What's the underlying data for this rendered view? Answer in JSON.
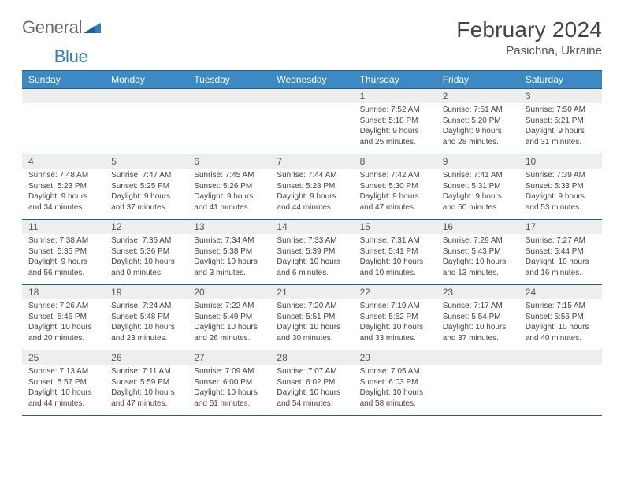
{
  "logo": {
    "word1": "General",
    "word2": "Blue"
  },
  "colors": {
    "headerBar": "#3d89c3",
    "rule": "#1f5f95",
    "daynumBg": "#eeeeee",
    "logoBlue": "#2f7fc2",
    "logoGray": "#6a6a6a",
    "text": "#444444"
  },
  "title": "February 2024",
  "location": "Pasichna, Ukraine",
  "dayNames": [
    "Sunday",
    "Monday",
    "Tuesday",
    "Wednesday",
    "Thursday",
    "Friday",
    "Saturday"
  ],
  "weeks": [
    [
      {
        "n": "",
        "sunrise": "",
        "sunset": "",
        "daylight": ""
      },
      {
        "n": "",
        "sunrise": "",
        "sunset": "",
        "daylight": ""
      },
      {
        "n": "",
        "sunrise": "",
        "sunset": "",
        "daylight": ""
      },
      {
        "n": "",
        "sunrise": "",
        "sunset": "",
        "daylight": ""
      },
      {
        "n": "1",
        "sunrise": "Sunrise: 7:52 AM",
        "sunset": "Sunset: 5:18 PM",
        "daylight": "Daylight: 9 hours and 25 minutes."
      },
      {
        "n": "2",
        "sunrise": "Sunrise: 7:51 AM",
        "sunset": "Sunset: 5:20 PM",
        "daylight": "Daylight: 9 hours and 28 minutes."
      },
      {
        "n": "3",
        "sunrise": "Sunrise: 7:50 AM",
        "sunset": "Sunset: 5:21 PM",
        "daylight": "Daylight: 9 hours and 31 minutes."
      }
    ],
    [
      {
        "n": "4",
        "sunrise": "Sunrise: 7:48 AM",
        "sunset": "Sunset: 5:23 PM",
        "daylight": "Daylight: 9 hours and 34 minutes."
      },
      {
        "n": "5",
        "sunrise": "Sunrise: 7:47 AM",
        "sunset": "Sunset: 5:25 PM",
        "daylight": "Daylight: 9 hours and 37 minutes."
      },
      {
        "n": "6",
        "sunrise": "Sunrise: 7:45 AM",
        "sunset": "Sunset: 5:26 PM",
        "daylight": "Daylight: 9 hours and 41 minutes."
      },
      {
        "n": "7",
        "sunrise": "Sunrise: 7:44 AM",
        "sunset": "Sunset: 5:28 PM",
        "daylight": "Daylight: 9 hours and 44 minutes."
      },
      {
        "n": "8",
        "sunrise": "Sunrise: 7:42 AM",
        "sunset": "Sunset: 5:30 PM",
        "daylight": "Daylight: 9 hours and 47 minutes."
      },
      {
        "n": "9",
        "sunrise": "Sunrise: 7:41 AM",
        "sunset": "Sunset: 5:31 PM",
        "daylight": "Daylight: 9 hours and 50 minutes."
      },
      {
        "n": "10",
        "sunrise": "Sunrise: 7:39 AM",
        "sunset": "Sunset: 5:33 PM",
        "daylight": "Daylight: 9 hours and 53 minutes."
      }
    ],
    [
      {
        "n": "11",
        "sunrise": "Sunrise: 7:38 AM",
        "sunset": "Sunset: 5:35 PM",
        "daylight": "Daylight: 9 hours and 56 minutes."
      },
      {
        "n": "12",
        "sunrise": "Sunrise: 7:36 AM",
        "sunset": "Sunset: 5:36 PM",
        "daylight": "Daylight: 10 hours and 0 minutes."
      },
      {
        "n": "13",
        "sunrise": "Sunrise: 7:34 AM",
        "sunset": "Sunset: 5:38 PM",
        "daylight": "Daylight: 10 hours and 3 minutes."
      },
      {
        "n": "14",
        "sunrise": "Sunrise: 7:33 AM",
        "sunset": "Sunset: 5:39 PM",
        "daylight": "Daylight: 10 hours and 6 minutes."
      },
      {
        "n": "15",
        "sunrise": "Sunrise: 7:31 AM",
        "sunset": "Sunset: 5:41 PM",
        "daylight": "Daylight: 10 hours and 10 minutes."
      },
      {
        "n": "16",
        "sunrise": "Sunrise: 7:29 AM",
        "sunset": "Sunset: 5:43 PM",
        "daylight": "Daylight: 10 hours and 13 minutes."
      },
      {
        "n": "17",
        "sunrise": "Sunrise: 7:27 AM",
        "sunset": "Sunset: 5:44 PM",
        "daylight": "Daylight: 10 hours and 16 minutes."
      }
    ],
    [
      {
        "n": "18",
        "sunrise": "Sunrise: 7:26 AM",
        "sunset": "Sunset: 5:46 PM",
        "daylight": "Daylight: 10 hours and 20 minutes."
      },
      {
        "n": "19",
        "sunrise": "Sunrise: 7:24 AM",
        "sunset": "Sunset: 5:48 PM",
        "daylight": "Daylight: 10 hours and 23 minutes."
      },
      {
        "n": "20",
        "sunrise": "Sunrise: 7:22 AM",
        "sunset": "Sunset: 5:49 PM",
        "daylight": "Daylight: 10 hours and 26 minutes."
      },
      {
        "n": "21",
        "sunrise": "Sunrise: 7:20 AM",
        "sunset": "Sunset: 5:51 PM",
        "daylight": "Daylight: 10 hours and 30 minutes."
      },
      {
        "n": "22",
        "sunrise": "Sunrise: 7:19 AM",
        "sunset": "Sunset: 5:52 PM",
        "daylight": "Daylight: 10 hours and 33 minutes."
      },
      {
        "n": "23",
        "sunrise": "Sunrise: 7:17 AM",
        "sunset": "Sunset: 5:54 PM",
        "daylight": "Daylight: 10 hours and 37 minutes."
      },
      {
        "n": "24",
        "sunrise": "Sunrise: 7:15 AM",
        "sunset": "Sunset: 5:56 PM",
        "daylight": "Daylight: 10 hours and 40 minutes."
      }
    ],
    [
      {
        "n": "25",
        "sunrise": "Sunrise: 7:13 AM",
        "sunset": "Sunset: 5:57 PM",
        "daylight": "Daylight: 10 hours and 44 minutes."
      },
      {
        "n": "26",
        "sunrise": "Sunrise: 7:11 AM",
        "sunset": "Sunset: 5:59 PM",
        "daylight": "Daylight: 10 hours and 47 minutes."
      },
      {
        "n": "27",
        "sunrise": "Sunrise: 7:09 AM",
        "sunset": "Sunset: 6:00 PM",
        "daylight": "Daylight: 10 hours and 51 minutes."
      },
      {
        "n": "28",
        "sunrise": "Sunrise: 7:07 AM",
        "sunset": "Sunset: 6:02 PM",
        "daylight": "Daylight: 10 hours and 54 minutes."
      },
      {
        "n": "29",
        "sunrise": "Sunrise: 7:05 AM",
        "sunset": "Sunset: 6:03 PM",
        "daylight": "Daylight: 10 hours and 58 minutes."
      },
      {
        "n": "",
        "sunrise": "",
        "sunset": "",
        "daylight": ""
      },
      {
        "n": "",
        "sunrise": "",
        "sunset": "",
        "daylight": ""
      }
    ]
  ]
}
